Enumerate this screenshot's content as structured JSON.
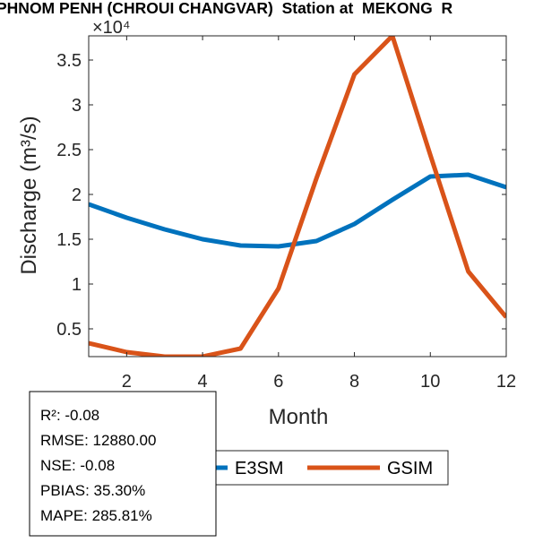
{
  "chart_data": {
    "type": "line",
    "title": "PHNOM PENH (CHROUI CHANGVAR)  Station at  MEKONG  R",
    "xlabel": "Month",
    "ylabel": "Discharge (m³/s)",
    "y_exponent": "×10⁴",
    "xlim": [
      1,
      12
    ],
    "ylim": [
      0.19,
      3.77
    ],
    "xticks": [
      2,
      4,
      6,
      8,
      10,
      12
    ],
    "yticks": [
      0.5,
      1,
      1.5,
      2,
      2.5,
      3,
      3.5
    ],
    "ytick_labels": [
      "0.5",
      "1",
      "1.5",
      "2",
      "2.5",
      "3",
      "3.5"
    ],
    "grid": false,
    "legend_placement": "bottom-outside",
    "x": [
      1,
      2,
      3,
      4,
      5,
      6,
      7,
      8,
      9,
      10,
      11,
      12
    ],
    "series": [
      {
        "name": "E3SM",
        "color": "#0072BD",
        "values": [
          1.89,
          1.74,
          1.61,
          1.5,
          1.43,
          1.42,
          1.48,
          1.67,
          1.94,
          2.2,
          2.22,
          2.08
        ]
      },
      {
        "name": "GSIM",
        "color": "#D95319",
        "values": [
          0.34,
          0.24,
          0.19,
          0.19,
          0.28,
          0.95,
          2.18,
          3.34,
          3.77,
          2.44,
          1.14,
          0.63
        ]
      }
    ],
    "annotations": [
      "R²: -0.08",
      "RMSE: 12880.00",
      "NSE: -0.08",
      "PBIAS: 35.30%",
      "MAPE: 285.81%"
    ]
  }
}
